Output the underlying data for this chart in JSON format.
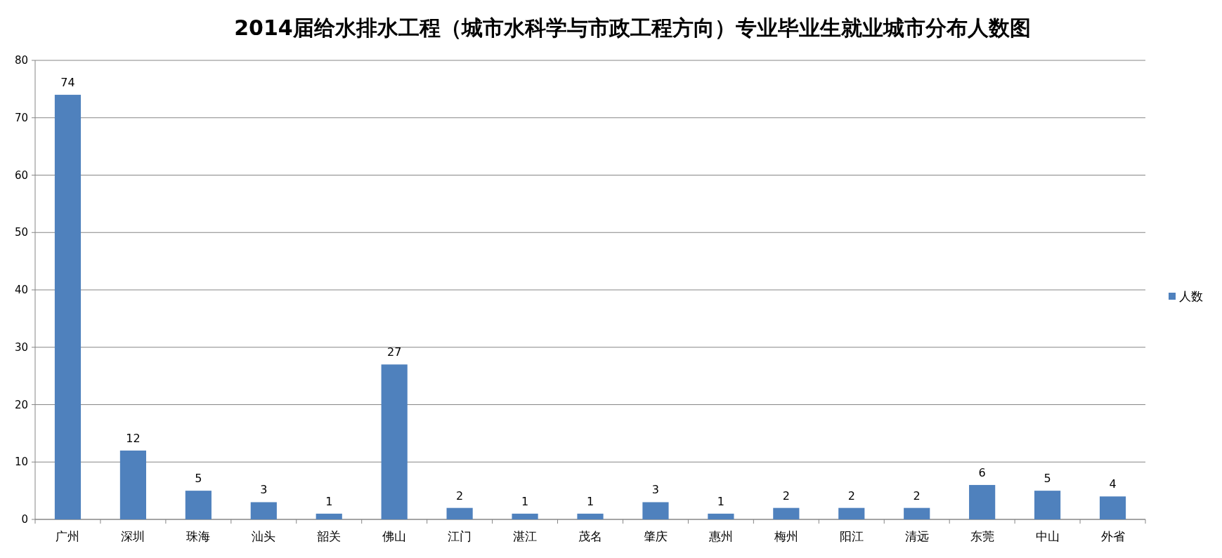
{
  "chart_data": {
    "type": "bar",
    "title": "2014届给水排水工程（城市水科学与市政工程方向）专业毕业生就业城市分布人数图",
    "categories": [
      "广州",
      "深圳",
      "珠海",
      "汕头",
      "韶关",
      "佛山",
      "江门",
      "湛江",
      "茂名",
      "肇庆",
      "惠州",
      "梅州",
      "阳江",
      "清远",
      "东莞",
      "中山",
      "外省"
    ],
    "series": [
      {
        "name": "人数",
        "color": "#4f81bd",
        "values": [
          74,
          12,
          5,
          3,
          1,
          27,
          2,
          1,
          1,
          3,
          1,
          2,
          2,
          2,
          6,
          5,
          4
        ]
      }
    ],
    "ylim": [
      0,
      80
    ],
    "yticks": [
      0,
      10,
      20,
      30,
      40,
      50,
      60,
      70,
      80
    ],
    "grid": "y",
    "legend": "right",
    "data_labels": true
  }
}
